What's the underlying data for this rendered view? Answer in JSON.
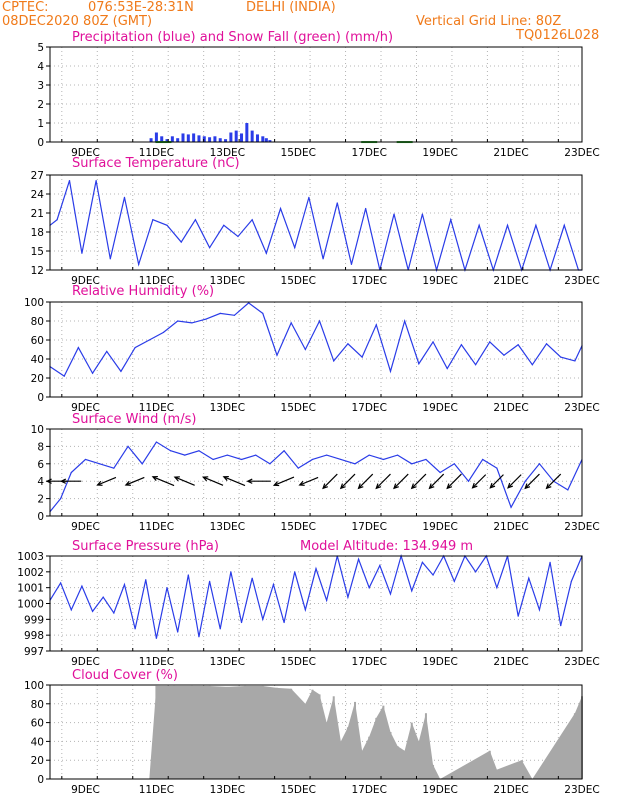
{
  "header": {
    "source": "CPTEC:",
    "coords": "076:53E-28:31N",
    "location": "DELHI (INDIA)",
    "run": "08DEC2020 80Z (GMT)",
    "grid_note": "Vertical Grid Line: 80Z",
    "code": "TQ0126L028"
  },
  "colors": {
    "header": "#f07a1a",
    "title": "#e0109a",
    "line": "#2a3ce8",
    "snow": "#2aa02a",
    "cloud": "#a8a8a8",
    "grid": "#b4b4b4"
  },
  "date_labels": [
    "9DEC",
    "11DEC",
    "13DEC",
    "15DEC",
    "17DEC",
    "19DEC",
    "21DEC",
    "23DEC"
  ],
  "chart_data": [
    {
      "type": "bar",
      "title": "Precipitation (blue) and Snow Fall (green) (mm/h)",
      "ylim": [
        0,
        5
      ],
      "yticks": [
        "0",
        "1",
        "2",
        "3",
        "4",
        "5"
      ],
      "grid": true,
      "x_days": [
        10.85,
        11.0,
        11.15,
        11.3,
        11.45,
        11.6,
        11.75,
        11.9,
        12.05,
        12.2,
        12.35,
        12.5,
        12.65,
        12.8,
        12.95,
        13.1,
        13.25,
        13.4,
        13.55,
        13.7,
        13.85,
        14.0,
        14.1,
        14.2
      ],
      "precip": [
        0.2,
        0.5,
        0.3,
        0.15,
        0.3,
        0.2,
        0.45,
        0.4,
        0.45,
        0.35,
        0.3,
        0.25,
        0.3,
        0.2,
        0.15,
        0.5,
        0.6,
        0.45,
        1.0,
        0.6,
        0.4,
        0.3,
        0.2,
        0.1
      ],
      "snow_days": [
        11.2,
        17.0,
        18.0
      ],
      "snow": [
        0.05,
        0.05,
        0.05
      ]
    },
    {
      "type": "line",
      "title": "Surface Temperature (nC)",
      "ylim": [
        10,
        27
      ],
      "yticks": [
        "12",
        "15",
        "18",
        "21",
        "24",
        "27"
      ],
      "grid": true,
      "x_days": [
        8.0,
        8.2,
        8.55,
        8.9,
        9.3,
        9.7,
        10.1,
        10.5,
        10.9,
        11.3,
        11.7,
        12.1,
        12.5,
        12.9,
        13.3,
        13.7,
        14.1,
        14.5,
        14.9,
        15.3,
        15.7,
        16.1,
        16.5,
        16.9,
        17.3,
        17.7,
        18.1,
        18.5,
        18.9,
        19.3,
        19.7,
        20.1,
        20.5,
        20.9,
        21.3,
        21.7,
        22.1,
        22.5,
        22.9,
        23.0
      ],
      "values": [
        18,
        19,
        26,
        13,
        26,
        12,
        23,
        11,
        19,
        18,
        15,
        19,
        14,
        18,
        16,
        19,
        13,
        21,
        14,
        23,
        12,
        22,
        11,
        21,
        10,
        20,
        10,
        20,
        10,
        19,
        10,
        18,
        10,
        18,
        10,
        18,
        10,
        18,
        10,
        10
      ]
    },
    {
      "type": "line",
      "title": "Relative Humidity (%)",
      "ylim": [
        0,
        100
      ],
      "yticks": [
        "0",
        "20",
        "40",
        "60",
        "80",
        "100"
      ],
      "grid": true,
      "x_days": [
        8.0,
        8.4,
        8.8,
        9.2,
        9.6,
        10.0,
        10.4,
        10.8,
        11.2,
        11.6,
        12.0,
        12.4,
        12.8,
        13.2,
        13.6,
        14.0,
        14.4,
        14.8,
        15.2,
        15.6,
        16.0,
        16.4,
        16.8,
        17.2,
        17.6,
        18.0,
        18.4,
        18.8,
        19.2,
        19.6,
        20.0,
        20.4,
        20.8,
        21.2,
        21.6,
        22.0,
        22.4,
        22.8,
        23.0
      ],
      "values": [
        32,
        22,
        52,
        25,
        48,
        27,
        52,
        60,
        68,
        80,
        78,
        82,
        88,
        86,
        99,
        88,
        44,
        78,
        50,
        80,
        38,
        56,
        42,
        76,
        27,
        80,
        35,
        58,
        30,
        55,
        34,
        58,
        44,
        55,
        34,
        56,
        42,
        38,
        54
      ]
    },
    {
      "type": "line",
      "title": "Surface Wind (m/s)",
      "ylim": [
        0,
        10
      ],
      "yticks": [
        "0",
        "2",
        "4",
        "6",
        "8",
        "10"
      ],
      "grid": true,
      "x_days": [
        8.0,
        8.3,
        8.6,
        9.0,
        9.4,
        9.8,
        10.2,
        10.6,
        11.0,
        11.4,
        11.8,
        12.2,
        12.6,
        13.0,
        13.4,
        13.8,
        14.2,
        14.6,
        15.0,
        15.4,
        15.8,
        16.2,
        16.6,
        17.0,
        17.4,
        17.8,
        18.2,
        18.6,
        19.0,
        19.4,
        19.8,
        20.2,
        20.6,
        21.0,
        21.4,
        21.8,
        22.2,
        22.6,
        23.0
      ],
      "values": [
        0.5,
        2,
        5,
        6.5,
        6,
        5.5,
        8,
        6,
        8.5,
        7.5,
        7,
        7.5,
        6.5,
        7,
        6.5,
        7,
        6,
        7.5,
        5.5,
        6.5,
        7,
        6.5,
        6,
        7,
        6.5,
        7,
        6,
        6.5,
        5,
        6,
        4,
        6.5,
        5.5,
        1,
        4,
        6,
        4,
        3,
        6.5
      ],
      "barb_days": [
        8.2,
        8.6,
        9.6,
        10.4,
        11.2,
        11.8,
        12.6,
        13.2,
        13.9,
        14.6,
        15.3,
        15.9,
        16.4,
        16.9,
        17.4,
        17.9,
        18.4,
        18.9,
        19.4,
        20.1,
        20.6,
        21.1,
        21.6,
        22.2
      ],
      "barb_speeds": [
        4,
        4,
        4,
        4,
        5,
        4.5,
        4.5,
        5,
        5,
        4.5,
        4,
        4,
        4,
        4,
        4,
        4,
        4,
        4,
        4,
        3.5,
        3.5,
        3.5,
        4,
        4
      ],
      "barb_directions": [
        "W",
        "W",
        "WSW",
        "WSW",
        "WNW",
        "WNW",
        "WNW",
        "WNW",
        "W",
        "WSW",
        "WSW",
        "SW",
        "SW",
        "SW",
        "SW",
        "SW",
        "SW",
        "SW",
        "SW",
        "SW",
        "SW",
        "SW",
        "SW",
        "SW"
      ]
    },
    {
      "type": "line",
      "title": "Surface Pressure (hPa)",
      "subtitle": "Model Altitude: 134.949 m",
      "ylim": [
        997,
        1003
      ],
      "yticks": [
        "997",
        "998",
        "999",
        "1000",
        "1001",
        "1002",
        "1003"
      ],
      "grid": true,
      "x_days": [
        8.0,
        8.3,
        8.6,
        8.9,
        9.2,
        9.5,
        9.8,
        10.1,
        10.4,
        10.7,
        11.0,
        11.3,
        11.6,
        11.9,
        12.2,
        12.5,
        12.8,
        13.1,
        13.4,
        13.7,
        14.0,
        14.3,
        14.6,
        14.9,
        15.2,
        15.5,
        15.8,
        16.1,
        16.4,
        16.7,
        17.0,
        17.3,
        17.6,
        17.9,
        18.2,
        18.5,
        18.8,
        19.1,
        19.4,
        19.7,
        20.0,
        20.3,
        20.6,
        20.9,
        21.2,
        21.5,
        21.8,
        22.1,
        22.4,
        22.7,
        23.0
      ],
      "values": [
        1000.2,
        1001.3,
        999.6,
        1001.1,
        999.5,
        1000.4,
        999.4,
        1001.2,
        998.4,
        1001.5,
        997.8,
        1001.0,
        998.2,
        1001.8,
        997.9,
        1001.4,
        998.4,
        1002.0,
        998.8,
        1001.6,
        999.0,
        1001.2,
        998.8,
        1002.0,
        999.6,
        1002.2,
        1000.2,
        1003.0,
        1000.4,
        1002.8,
        1001.0,
        1002.4,
        1000.6,
        1003.0,
        1000.8,
        1002.6,
        1001.8,
        1003.0,
        1001.4,
        1003.0,
        1002.0,
        1003.0,
        1001.0,
        1003.0,
        999.2,
        1001.6,
        999.6,
        1002.6,
        998.6,
        1001.4,
        1003.0
      ]
    },
    {
      "type": "bar",
      "title": "Cloud Cover (%)",
      "ylim": [
        0,
        100
      ],
      "yticks": [
        "0",
        "20",
        "40",
        "60",
        "80",
        "100"
      ],
      "grid": true,
      "x_days": [
        10.8,
        11.0,
        11.5,
        12.0,
        12.5,
        13.0,
        13.5,
        14.0,
        14.4,
        14.8,
        15.2,
        15.4,
        15.6,
        15.8,
        16.0,
        16.2,
        16.4,
        16.6,
        16.8,
        17.0,
        17.2,
        17.4,
        17.6,
        17.8,
        18.0,
        18.2,
        18.4,
        18.6,
        18.8,
        19.0,
        20.4,
        20.6,
        21.3,
        21.6,
        22.8,
        23.0
      ],
      "values": [
        0,
        99,
        99,
        99,
        99,
        98,
        99,
        99,
        97,
        96,
        80,
        95,
        90,
        60,
        88,
        40,
        55,
        82,
        30,
        45,
        65,
        78,
        50,
        35,
        30,
        60,
        40,
        70,
        15,
        0,
        30,
        10,
        20,
        0,
        70,
        88
      ]
    }
  ]
}
